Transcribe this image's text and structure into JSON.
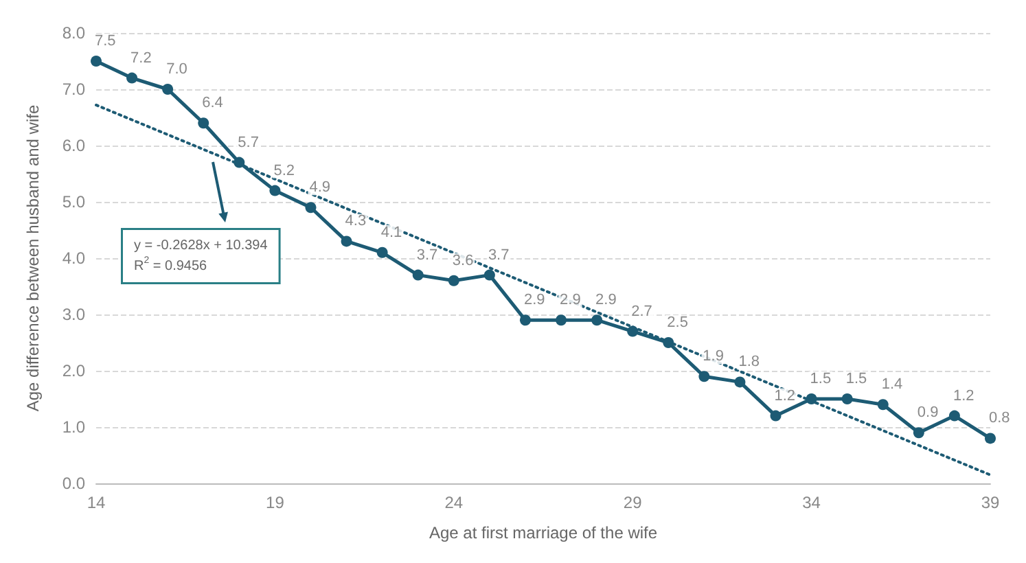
{
  "chart_data": {
    "type": "line",
    "xlabel": "Age at first marriage of the wife",
    "ylabel": "Age difference between husband and wife",
    "x": [
      14,
      15,
      16,
      17,
      18,
      19,
      20,
      21,
      22,
      23,
      24,
      25,
      26,
      27,
      28,
      29,
      30,
      31,
      32,
      33,
      34,
      35,
      36,
      37,
      38,
      39
    ],
    "series": [
      {
        "color": "#1d5b74",
        "marker": "circle",
        "line_style": "solid",
        "values": [
          7.5,
          7.2,
          7.0,
          6.4,
          5.7,
          5.2,
          4.9,
          4.3,
          4.1,
          3.7,
          3.6,
          3.7,
          2.9,
          2.9,
          2.9,
          2.7,
          2.5,
          1.9,
          1.8,
          1.2,
          1.5,
          1.5,
          1.4,
          0.9,
          1.2,
          0.8
        ],
        "value_labels": [
          "7.5",
          "7.2",
          "7.0",
          "6.4",
          "5.7",
          "5.2",
          "4.9",
          "4.3",
          "4.1",
          "3.7",
          "3.6",
          "3.7",
          "2.9",
          "2.9",
          "2.9",
          "2.7",
          "2.5",
          "1.9",
          "1.8",
          "1.2",
          "1.5",
          "1.5",
          "1.4",
          "0.9",
          "1.2",
          "0.8"
        ]
      },
      {
        "type": "line",
        "color": "#1d5b74",
        "marker": "none",
        "line_style": "dotted",
        "x": [
          14,
          39
        ],
        "values": [
          6.72,
          0.15
        ]
      }
    ],
    "annotations": [
      "y = -0.2628x + 10.394\nR$^{2}$ = 0.9456"
    ],
    "xlim": [
      14,
      39
    ],
    "xticks": [
      14,
      19,
      24,
      29,
      34,
      39
    ],
    "ylim": [
      0,
      8
    ],
    "yticks": [
      {
        "value": 0,
        "label": "0.0"
      },
      {
        "value": 1,
        "label": "1.0"
      },
      {
        "value": 2,
        "label": "2.0"
      },
      {
        "value": 3,
        "label": "3.0"
      },
      {
        "value": 4,
        "label": "4.0"
      },
      {
        "value": 5,
        "label": "5.0"
      },
      {
        "value": 6,
        "label": "6.0"
      },
      {
        "value": 7,
        "label": "7.0"
      },
      {
        "value": 8,
        "label": "8.0"
      }
    ],
    "grid": "y"
  }
}
